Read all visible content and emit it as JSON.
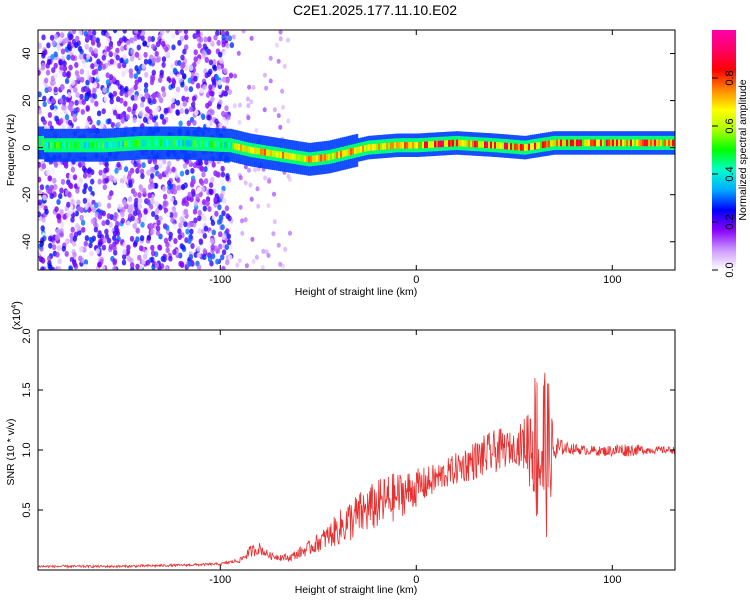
{
  "title": "C2E1.2025.177.11.10.E02",
  "chart_data": [
    {
      "type": "heatmap",
      "name": "spectrogram",
      "xlabel": "Height of straight line (km)",
      "ylabel": "Frequency (Hz)",
      "xlim": [
        -193,
        132
      ],
      "ylim": [
        -52,
        50
      ],
      "x_ticks": [
        -100,
        0,
        100
      ],
      "y_ticks": [
        -40,
        -20,
        0,
        20,
        40
      ],
      "colorbar": {
        "label": "Normalized spectral amplitude",
        "range": [
          0,
          1
        ],
        "ticks": [
          "0.0",
          "0.2",
          "0.4",
          "0.6",
          "0.8"
        ],
        "colors": [
          "#ffffff",
          "#cc99ff",
          "#8800ff",
          "#0000ff",
          "#00aaff",
          "#00ffcc",
          "#00ff00",
          "#aaff00",
          "#ffff00",
          "#ff8800",
          "#ff0000",
          "#ff0066",
          "#ff00aa"
        ]
      },
      "band_center_hz": [
        [
          -190,
          1
        ],
        [
          -160,
          1
        ],
        [
          -140,
          2
        ],
        [
          -120,
          2
        ],
        [
          -95,
          1
        ],
        [
          -85,
          -1
        ],
        [
          -70,
          -3
        ],
        [
          -55,
          -5
        ],
        [
          -45,
          -4
        ],
        [
          -35,
          -2
        ],
        [
          -25,
          0
        ],
        [
          -10,
          1
        ],
        [
          0,
          1
        ],
        [
          20,
          2
        ],
        [
          40,
          1
        ],
        [
          55,
          0
        ],
        [
          70,
          2
        ],
        [
          90,
          2
        ],
        [
          110,
          2
        ],
        [
          132,
          2
        ]
      ]
    },
    {
      "type": "line",
      "name": "snr",
      "xlabel": "Height of straight line (km)",
      "ylabel": "SNR (10 * v/v)",
      "y_multiplier_label": "(x10",
      "y_multiplier_exp": "4",
      "xlim": [
        -193,
        132
      ],
      "ylim": [
        0,
        2.0
      ],
      "x_ticks": [
        -100,
        0,
        100
      ],
      "y_ticks": [
        "0.5",
        "1.0",
        "1.5",
        "2.0"
      ],
      "y_tick_values": [
        0.5,
        1.0,
        1.5,
        2.0
      ],
      "color": "#e83030",
      "series": [
        {
          "x": [
            -193,
            -150,
            -120,
            -100,
            -90,
            -85,
            -80,
            -75,
            -65,
            -55,
            -45,
            -35,
            -25,
            -15,
            -5,
            5,
            15,
            25,
            35,
            42,
            50,
            55,
            60,
            63,
            66,
            70,
            75,
            85,
            95,
            105,
            120,
            132
          ],
          "y": [
            0.03,
            0.03,
            0.04,
            0.05,
            0.08,
            0.15,
            0.18,
            0.12,
            0.1,
            0.18,
            0.28,
            0.4,
            0.5,
            0.58,
            0.65,
            0.72,
            0.8,
            0.88,
            0.95,
            1.0,
            1.02,
            1.05,
            1.1,
            1.0,
            1.0,
            0.98,
            1.02,
            1.0,
            0.99,
            1.0,
            1.0,
            1.0
          ],
          "amplitude": [
            0.01,
            0.01,
            0.01,
            0.01,
            0.02,
            0.05,
            0.05,
            0.03,
            0.03,
            0.06,
            0.1,
            0.18,
            0.2,
            0.22,
            0.18,
            0.14,
            0.12,
            0.15,
            0.18,
            0.18,
            0.12,
            0.22,
            0.55,
            0.9,
            0.8,
            0.2,
            0.05,
            0.04,
            0.04,
            0.06,
            0.03,
            0.03
          ]
        }
      ]
    }
  ]
}
